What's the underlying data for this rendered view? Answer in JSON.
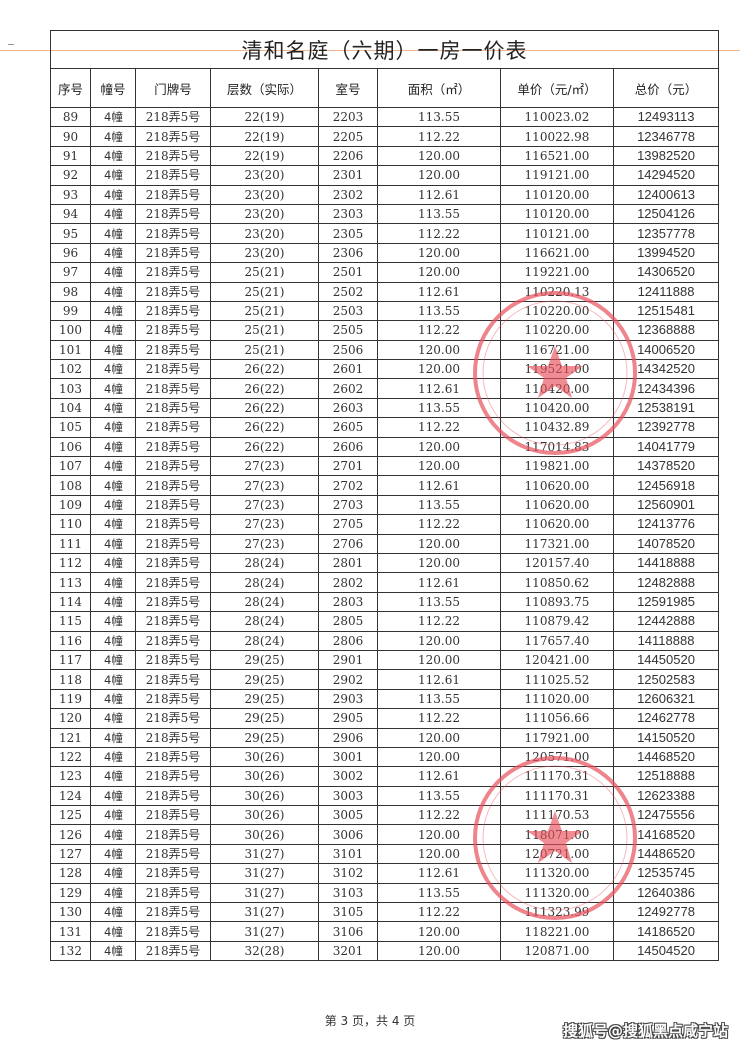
{
  "title": "清和名庭（六期）一房一价表",
  "table": {
    "headers": [
      "序号",
      "幢号",
      "门牌号",
      "层数（实际）",
      "室号",
      "面积（㎡）",
      "单价（元/㎡）",
      "总价（元）"
    ],
    "rows": [
      [
        "89",
        "4幢",
        "218弄5号",
        "22(19)",
        "2203",
        "113.55",
        "110023.02",
        "12493113"
      ],
      [
        "90",
        "4幢",
        "218弄5号",
        "22(19)",
        "2205",
        "112.22",
        "110022.98",
        "12346778"
      ],
      [
        "91",
        "4幢",
        "218弄5号",
        "22(19)",
        "2206",
        "120.00",
        "116521.00",
        "13982520"
      ],
      [
        "92",
        "4幢",
        "218弄5号",
        "23(20)",
        "2301",
        "120.00",
        "119121.00",
        "14294520"
      ],
      [
        "93",
        "4幢",
        "218弄5号",
        "23(20)",
        "2302",
        "112.61",
        "110120.00",
        "12400613"
      ],
      [
        "94",
        "4幢",
        "218弄5号",
        "23(20)",
        "2303",
        "113.55",
        "110120.00",
        "12504126"
      ],
      [
        "95",
        "4幢",
        "218弄5号",
        "23(20)",
        "2305",
        "112.22",
        "110121.00",
        "12357778"
      ],
      [
        "96",
        "4幢",
        "218弄5号",
        "23(20)",
        "2306",
        "120.00",
        "116621.00",
        "13994520"
      ],
      [
        "97",
        "4幢",
        "218弄5号",
        "25(21)",
        "2501",
        "120.00",
        "119221.00",
        "14306520"
      ],
      [
        "98",
        "4幢",
        "218弄5号",
        "25(21)",
        "2502",
        "112.61",
        "110220.13",
        "12411888"
      ],
      [
        "99",
        "4幢",
        "218弄5号",
        "25(21)",
        "2503",
        "113.55",
        "110220.00",
        "12515481"
      ],
      [
        "100",
        "4幢",
        "218弄5号",
        "25(21)",
        "2505",
        "112.22",
        "110220.00",
        "12368888"
      ],
      [
        "101",
        "4幢",
        "218弄5号",
        "25(21)",
        "2506",
        "120.00",
        "116721.00",
        "14006520"
      ],
      [
        "102",
        "4幢",
        "218弄5号",
        "26(22)",
        "2601",
        "120.00",
        "119521.00",
        "14342520"
      ],
      [
        "103",
        "4幢",
        "218弄5号",
        "26(22)",
        "2602",
        "112.61",
        "110420.00",
        "12434396"
      ],
      [
        "104",
        "4幢",
        "218弄5号",
        "26(22)",
        "2603",
        "113.55",
        "110420.00",
        "12538191"
      ],
      [
        "105",
        "4幢",
        "218弄5号",
        "26(22)",
        "2605",
        "112.22",
        "110432.89",
        "12392778"
      ],
      [
        "106",
        "4幢",
        "218弄5号",
        "26(22)",
        "2606",
        "120.00",
        "117014.83",
        "14041779"
      ],
      [
        "107",
        "4幢",
        "218弄5号",
        "27(23)",
        "2701",
        "120.00",
        "119821.00",
        "14378520"
      ],
      [
        "108",
        "4幢",
        "218弄5号",
        "27(23)",
        "2702",
        "112.61",
        "110620.00",
        "12456918"
      ],
      [
        "109",
        "4幢",
        "218弄5号",
        "27(23)",
        "2703",
        "113.55",
        "110620.00",
        "12560901"
      ],
      [
        "110",
        "4幢",
        "218弄5号",
        "27(23)",
        "2705",
        "112.22",
        "110620.00",
        "12413776"
      ],
      [
        "111",
        "4幢",
        "218弄5号",
        "27(23)",
        "2706",
        "120.00",
        "117321.00",
        "14078520"
      ],
      [
        "112",
        "4幢",
        "218弄5号",
        "28(24)",
        "2801",
        "120.00",
        "120157.40",
        "14418888"
      ],
      [
        "113",
        "4幢",
        "218弄5号",
        "28(24)",
        "2802",
        "112.61",
        "110850.62",
        "12482888"
      ],
      [
        "114",
        "4幢",
        "218弄5号",
        "28(24)",
        "2803",
        "113.55",
        "110893.75",
        "12591985"
      ],
      [
        "115",
        "4幢",
        "218弄5号",
        "28(24)",
        "2805",
        "112.22",
        "110879.42",
        "12442888"
      ],
      [
        "116",
        "4幢",
        "218弄5号",
        "28(24)",
        "2806",
        "120.00",
        "117657.40",
        "14118888"
      ],
      [
        "117",
        "4幢",
        "218弄5号",
        "29(25)",
        "2901",
        "120.00",
        "120421.00",
        "14450520"
      ],
      [
        "118",
        "4幢",
        "218弄5号",
        "29(25)",
        "2902",
        "112.61",
        "111025.52",
        "12502583"
      ],
      [
        "119",
        "4幢",
        "218弄5号",
        "29(25)",
        "2903",
        "113.55",
        "111020.00",
        "12606321"
      ],
      [
        "120",
        "4幢",
        "218弄5号",
        "29(25)",
        "2905",
        "112.22",
        "111056.66",
        "12462778"
      ],
      [
        "121",
        "4幢",
        "218弄5号",
        "29(25)",
        "2906",
        "120.00",
        "117921.00",
        "14150520"
      ],
      [
        "122",
        "4幢",
        "218弄5号",
        "30(26)",
        "3001",
        "120.00",
        "120571.00",
        "14468520"
      ],
      [
        "123",
        "4幢",
        "218弄5号",
        "30(26)",
        "3002",
        "112.61",
        "111170.31",
        "12518888"
      ],
      [
        "124",
        "4幢",
        "218弄5号",
        "30(26)",
        "3003",
        "113.55",
        "111170.31",
        "12623388"
      ],
      [
        "125",
        "4幢",
        "218弄5号",
        "30(26)",
        "3005",
        "112.22",
        "111170.53",
        "12475556"
      ],
      [
        "126",
        "4幢",
        "218弄5号",
        "30(26)",
        "3006",
        "120.00",
        "118071.00",
        "14168520"
      ],
      [
        "127",
        "4幢",
        "218弄5号",
        "31(27)",
        "3101",
        "120.00",
        "120721.00",
        "14486520"
      ],
      [
        "128",
        "4幢",
        "218弄5号",
        "31(27)",
        "3102",
        "112.61",
        "111320.00",
        "12535745"
      ],
      [
        "129",
        "4幢",
        "218弄5号",
        "31(27)",
        "3103",
        "113.55",
        "111320.00",
        "12640386"
      ],
      [
        "130",
        "4幢",
        "218弄5号",
        "31(27)",
        "3105",
        "112.22",
        "111323.99",
        "12492778"
      ],
      [
        "131",
        "4幢",
        "218弄5号",
        "31(27)",
        "3106",
        "120.00",
        "118221.00",
        "14186520"
      ],
      [
        "132",
        "4幢",
        "218弄5号",
        "32(28)",
        "3201",
        "120.00",
        "120871.00",
        "14504520"
      ]
    ]
  },
  "footer": {
    "page": "第 3 页，共 4 页",
    "watermark": "搜狐号@搜狐黑点咸宁站"
  },
  "colors": {
    "stamp": "#e8505b",
    "accent_line": "#f2b48c"
  }
}
